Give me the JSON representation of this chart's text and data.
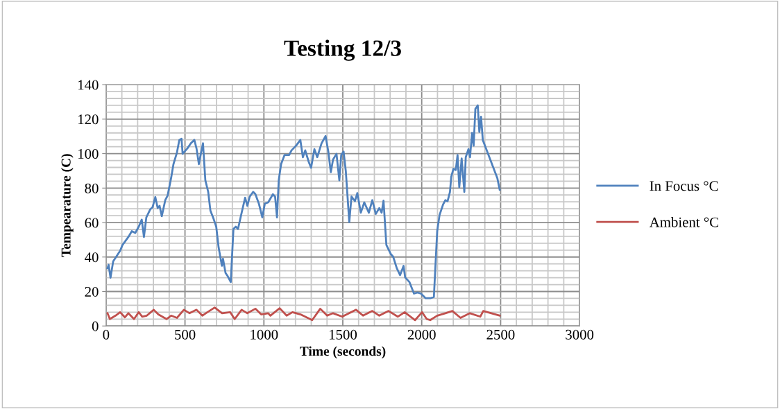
{
  "chart_data": {
    "type": "line",
    "title": "Testing 12/3",
    "xlabel": "Time (seconds)",
    "ylabel": "Tempearature (C)",
    "xlim": [
      0,
      3000
    ],
    "xticks": [
      0,
      500,
      1000,
      1500,
      2000,
      2500,
      3000
    ],
    "ylim": [
      0,
      140
    ],
    "yticks": [
      0,
      20,
      40,
      60,
      80,
      100,
      120,
      140
    ],
    "grid": true,
    "legend": "right",
    "marker": "none",
    "line_style": "solid",
    "series": [
      {
        "name": "In Focus °C",
        "color": "#4f81bd",
        "x": [
          9,
          16,
          28,
          45,
          89,
          104,
          141,
          163,
          185,
          207,
          226,
          240,
          255,
          280,
          295,
          312,
          327,
          339,
          353,
          375,
          390,
          412,
          427,
          449,
          464,
          478,
          485,
          515,
          537,
          559,
          573,
          588,
          602,
          614,
          629,
          647,
          661,
          683,
          698,
          713,
          734,
          741,
          757,
          771,
          790,
          807,
          822,
          836,
          859,
          881,
          895,
          910,
          932,
          946,
          968,
          990,
          1006,
          1027,
          1057,
          1071,
          1083,
          1094,
          1109,
          1131,
          1160,
          1175,
          1204,
          1231,
          1247,
          1262,
          1284,
          1299,
          1320,
          1338,
          1365,
          1391,
          1409,
          1424,
          1438,
          1460,
          1478,
          1490,
          1505,
          1519,
          1541,
          1555,
          1577,
          1592,
          1614,
          1636,
          1665,
          1687,
          1709,
          1731,
          1746,
          1758,
          1776,
          1805,
          1819,
          1842,
          1863,
          1885,
          1895,
          1922,
          1951,
          1973,
          1995,
          2025,
          2054,
          2077,
          2098,
          2113,
          2135,
          2150,
          2164,
          2179,
          2187,
          2201,
          2216,
          2227,
          2238,
          2253,
          2270,
          2279,
          2296,
          2306,
          2319,
          2329,
          2340,
          2355,
          2365,
          2376,
          2387,
          2479,
          2494
        ],
        "values": [
          33.5,
          35.5,
          28,
          37.5,
          43.6,
          47,
          51.6,
          55,
          54,
          57.6,
          61.7,
          51.6,
          63,
          67.7,
          69,
          74.8,
          68.4,
          69.7,
          63.7,
          73,
          75.7,
          85.8,
          93.9,
          100.6,
          107.9,
          108.6,
          99.9,
          103,
          106,
          108,
          103,
          93.9,
          100.6,
          106,
          84.5,
          77.8,
          67,
          61.7,
          57.6,
          45.6,
          34.9,
          39,
          30.8,
          28.8,
          25.5,
          56.3,
          57.6,
          56.3,
          65.7,
          74.4,
          69.7,
          75,
          77.8,
          76.5,
          71,
          63,
          71,
          71.7,
          76.4,
          75,
          63,
          84.5,
          93.9,
          99.2,
          99.2,
          101.9,
          104.6,
          107.9,
          97.9,
          101.9,
          95.2,
          91.8,
          102.6,
          97.9,
          105.9,
          110.2,
          100.6,
          89.2,
          96.5,
          99.9,
          84.5,
          99.2,
          101.2,
          89.8,
          60.3,
          75.1,
          72.4,
          77.1,
          65.7,
          71.7,
          65.7,
          73,
          65,
          68.4,
          65.7,
          72.7,
          47,
          41.6,
          40.2,
          33.5,
          29.5,
          34.9,
          28.2,
          25.5,
          18.8,
          19.4,
          18.8,
          16.1,
          16.1,
          16.8,
          55,
          64.4,
          70.4,
          73,
          72.4,
          77.8,
          86.5,
          91.2,
          90.5,
          99.2,
          80.5,
          97.2,
          77.8,
          97.9,
          102.6,
          97.9,
          112,
          104.6,
          126,
          128,
          112.6,
          121.4,
          107.9,
          85.8,
          79.1
        ]
      },
      {
        "name": "Ambient °C",
        "color": "#c0504d",
        "x": [
          9,
          24,
          60,
          89,
          119,
          141,
          177,
          207,
          229,
          258,
          302,
          331,
          383,
          412,
          449,
          493,
          529,
          573,
          610,
          632,
          688,
          735,
          786,
          815,
          859,
          895,
          946,
          983,
          1027,
          1041,
          1100,
          1144,
          1181,
          1232,
          1306,
          1357,
          1401,
          1438,
          1496,
          1584,
          1628,
          1687,
          1731,
          1790,
          1848,
          1892,
          1958,
          2002,
          2032,
          2054,
          2098,
          2150,
          2194,
          2246,
          2305,
          2371,
          2390,
          2494
        ],
        "values": [
          7.4,
          4,
          6,
          8,
          5,
          7.4,
          4,
          8,
          5.4,
          6,
          9.4,
          6.7,
          4,
          6,
          4.7,
          9.4,
          7.4,
          9.4,
          6,
          7.4,
          10.7,
          7.4,
          8,
          4,
          9.4,
          7.4,
          10,
          6.7,
          7.4,
          6,
          10.3,
          6,
          8,
          6.7,
          3.4,
          10,
          6,
          7.4,
          5.4,
          9.4,
          6,
          8.7,
          6,
          8.7,
          5.4,
          8,
          3.4,
          8,
          4,
          3.4,
          6,
          7.4,
          8.7,
          4.7,
          7.4,
          5.4,
          8.7,
          6
        ]
      }
    ]
  }
}
